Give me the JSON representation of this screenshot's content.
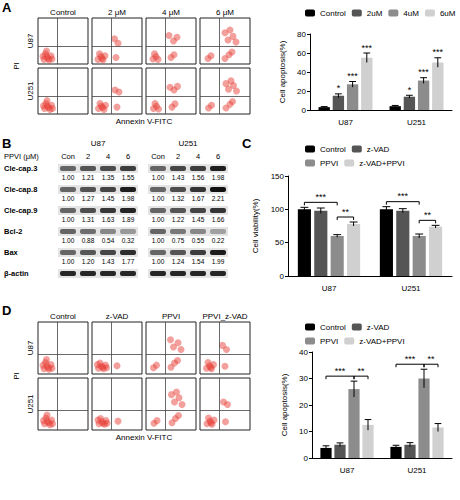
{
  "chart_data": [
    {
      "type": "scatter",
      "panel": "A",
      "x_label": "Annexin V-FITC",
      "y_label": "PI",
      "columns": [
        "Control",
        "2 μM",
        "4 μM",
        "6 μM"
      ],
      "rows": [
        "U87",
        "U251"
      ],
      "xlim": [
        0,
        100
      ],
      "ylim": [
        0,
        100
      ],
      "tick_labels": false,
      "gate": {
        "x": 38,
        "y": 38
      },
      "color": "#e8413a",
      "points": [
        [
          [
            [
              12,
              10
            ],
            [
              18,
              16
            ],
            [
              22,
              9
            ],
            [
              15,
              22
            ],
            [
              26,
              18
            ],
            [
              20,
              12
            ],
            [
              10,
              17
            ],
            [
              28,
              11
            ],
            [
              17,
              28
            ]
          ],
          [
            [
              12,
              10
            ],
            [
              18,
              16
            ],
            [
              22,
              9
            ],
            [
              15,
              22
            ],
            [
              26,
              18
            ],
            [
              20,
              12
            ],
            [
              48,
              14
            ],
            [
              52,
              45
            ],
            [
              45,
              55
            ]
          ],
          [
            [
              14,
              11
            ],
            [
              20,
              16
            ],
            [
              24,
              10
            ],
            [
              17,
              22
            ],
            [
              50,
              14
            ],
            [
              56,
              20
            ],
            [
              55,
              50
            ],
            [
              62,
              58
            ],
            [
              46,
              62
            ]
          ],
          [
            [
              16,
              12
            ],
            [
              22,
              18
            ],
            [
              50,
              12
            ],
            [
              58,
              20
            ],
            [
              64,
              26
            ],
            [
              56,
              52
            ],
            [
              66,
              60
            ],
            [
              72,
              48
            ],
            [
              50,
              68
            ],
            [
              60,
              74
            ]
          ]
        ],
        [
          [
            [
              13,
              12
            ],
            [
              19,
              17
            ],
            [
              24,
              10
            ],
            [
              16,
              23
            ],
            [
              27,
              19
            ],
            [
              21,
              14
            ],
            [
              11,
              18
            ],
            [
              29,
              12
            ],
            [
              18,
              29
            ]
          ],
          [
            [
              13,
              12
            ],
            [
              19,
              17
            ],
            [
              24,
              10
            ],
            [
              16,
              23
            ],
            [
              27,
              19
            ],
            [
              21,
              14
            ],
            [
              50,
              15
            ],
            [
              54,
              48
            ],
            [
              46,
              52
            ]
          ],
          [
            [
              15,
              12
            ],
            [
              21,
              17
            ],
            [
              25,
              11
            ],
            [
              18,
              23
            ],
            [
              52,
              15
            ],
            [
              58,
              22
            ],
            [
              56,
              52
            ],
            [
              63,
              60
            ],
            [
              48,
              58
            ]
          ],
          [
            [
              17,
              13
            ],
            [
              23,
              19
            ],
            [
              52,
              13
            ],
            [
              60,
              21
            ],
            [
              65,
              27
            ],
            [
              57,
              54
            ],
            [
              67,
              62
            ],
            [
              73,
              50
            ],
            [
              52,
              66
            ],
            [
              62,
              72
            ]
          ]
        ]
      ]
    },
    {
      "type": "bar",
      "y_label": "Cell apoptosis(%)",
      "categories": [
        "U87",
        "U251"
      ],
      "ylim": [
        0,
        80
      ],
      "yticks": [
        0,
        20,
        40,
        60,
        80
      ],
      "grid": false,
      "legend": "top",
      "series": [
        {
          "name": "Control",
          "color": "#000000",
          "values": [
            3,
            4
          ],
          "errors": [
            0.6,
            0.8
          ]
        },
        {
          "name": "2uM",
          "color": "#555555",
          "values": [
            15,
            14
          ],
          "errors": [
            2,
            1.5
          ],
          "significance": [
            "*",
            "*"
          ]
        },
        {
          "name": "4uM",
          "color": "#8c8c8c",
          "values": [
            27,
            31
          ],
          "errors": [
            3,
            3
          ],
          "significance": [
            "***",
            "***"
          ]
        },
        {
          "name": "6uM",
          "color": "#d0d0d0",
          "values": [
            55,
            50
          ],
          "errors": [
            5,
            5
          ],
          "significance": [
            "***",
            "***"
          ]
        }
      ]
    },
    {
      "type": "blot",
      "panel": "B",
      "title": "PPVI (μM)",
      "lanes": [
        "Con",
        "2",
        "4",
        "6"
      ],
      "rows": [
        "Cle-cap.3",
        "Cle-cap.8",
        "Cle-cap.9",
        "Bcl-2",
        "Bax",
        "β-actin"
      ],
      "groups": [
        {
          "name": "U87",
          "values": [
            [
              "1.00",
              "1.21",
              "1.35",
              "1.55"
            ],
            [
              "1.00",
              "1.27",
              "1.45",
              "1.98"
            ],
            [
              "1.00",
              "1.31",
              "1.63",
              "1.89"
            ],
            [
              "1.00",
              "0.88",
              "0.54",
              "0.32"
            ],
            [
              "1.00",
              "1.20",
              "1.43",
              "1.77"
            ],
            null
          ]
        },
        {
          "name": "U251",
          "values": [
            [
              "1.00",
              "1.43",
              "1.56",
              "1.98"
            ],
            [
              "1.00",
              "1.32",
              "1.67",
              "2.21"
            ],
            [
              "1.00",
              "1.22",
              "1.45",
              "1.66"
            ],
            [
              "1.00",
              "0.75",
              "0.55",
              "0.22"
            ],
            [
              "1.00",
              "1.24",
              "1.54",
              "1.99"
            ],
            null
          ]
        }
      ]
    },
    {
      "type": "bar",
      "panel": "C",
      "y_label": "Cell viability(%)",
      "categories": [
        "U87",
        "U251"
      ],
      "ylim": [
        0,
        150
      ],
      "yticks": [
        0,
        50,
        100,
        150
      ],
      "grid": false,
      "legend": "top",
      "series": [
        {
          "name": "Control",
          "color": "#000000",
          "values": [
            100,
            100
          ],
          "errors": [
            3,
            4
          ]
        },
        {
          "name": "z-VAD",
          "color": "#555555",
          "values": [
            98,
            98
          ],
          "errors": [
            4,
            3
          ]
        },
        {
          "name": "PPVI",
          "color": "#8c8c8c",
          "values": [
            60,
            60
          ],
          "errors": [
            2,
            3
          ]
        },
        {
          "name": "z-VAD+PPVI",
          "color": "#d0d0d0",
          "values": [
            78,
            74
          ],
          "errors": [
            3,
            2
          ]
        }
      ],
      "brackets": [
        {
          "category": "U87",
          "from": "Control",
          "to": "PPVI",
          "label": "***"
        },
        {
          "category": "U87",
          "from": "PPVI",
          "to": "z-VAD+PPVI",
          "label": "**"
        },
        {
          "category": "U251",
          "from": "Control",
          "to": "PPVI",
          "label": "***"
        },
        {
          "category": "U251",
          "from": "PPVI",
          "to": "z-VAD+PPVI",
          "label": "**"
        }
      ]
    },
    {
      "type": "scatter",
      "panel": "D",
      "x_label": "Annexin V-FITC",
      "y_label": "PI",
      "columns": [
        "Control",
        "z-VAD",
        "PPVI",
        "PPVI_z-VAD"
      ],
      "rows": [
        "U87",
        "U251"
      ],
      "xlim": [
        0,
        100
      ],
      "ylim": [
        0,
        100
      ],
      "tick_labels": false,
      "gate": {
        "x": 38,
        "y": 38
      },
      "color": "#e8413a",
      "points": [
        [
          [
            [
              12,
              10
            ],
            [
              18,
              16
            ],
            [
              22,
              9
            ],
            [
              15,
              22
            ],
            [
              26,
              18
            ],
            [
              20,
              12
            ],
            [
              10,
              17
            ],
            [
              28,
              11
            ],
            [
              17,
              28
            ]
          ],
          [
            [
              13,
              11
            ],
            [
              19,
              15
            ],
            [
              23,
              10
            ],
            [
              16,
              21
            ],
            [
              27,
              17
            ],
            [
              21,
              13
            ],
            [
              11,
              18
            ],
            [
              29,
              12
            ],
            [
              50,
              16
            ]
          ],
          [
            [
              15,
              12
            ],
            [
              21,
              17
            ],
            [
              50,
              13
            ],
            [
              57,
              21
            ],
            [
              63,
              26
            ],
            [
              55,
              52
            ],
            [
              64,
              60
            ],
            [
              70,
              47
            ],
            [
              49,
              66
            ]
          ],
          [
            [
              13,
              11
            ],
            [
              19,
              16
            ],
            [
              23,
              10
            ],
            [
              16,
              22
            ],
            [
              27,
              18
            ],
            [
              21,
              13
            ],
            [
              50,
              15
            ],
            [
              53,
              47
            ],
            [
              45,
              55
            ]
          ]
        ],
        [
          [
            [
              13,
              12
            ],
            [
              19,
              17
            ],
            [
              24,
              10
            ],
            [
              16,
              23
            ],
            [
              27,
              19
            ],
            [
              21,
              14
            ],
            [
              11,
              18
            ],
            [
              29,
              12
            ],
            [
              18,
              29
            ]
          ],
          [
            [
              14,
              12
            ],
            [
              20,
              16
            ],
            [
              25,
              11
            ],
            [
              17,
              22
            ],
            [
              28,
              18
            ],
            [
              22,
              13
            ],
            [
              12,
              19
            ],
            [
              30,
              13
            ],
            [
              52,
              17
            ]
          ],
          [
            [
              16,
              13
            ],
            [
              22,
              18
            ],
            [
              52,
              14
            ],
            [
              59,
              22
            ],
            [
              65,
              28
            ],
            [
              57,
              54
            ],
            [
              66,
              62
            ],
            [
              72,
              49
            ],
            [
              51,
              68
            ],
            [
              61,
              73
            ]
          ],
          [
            [
              14,
              12
            ],
            [
              20,
              17
            ],
            [
              24,
              11
            ],
            [
              17,
              23
            ],
            [
              28,
              19
            ],
            [
              22,
              14
            ],
            [
              51,
              16
            ],
            [
              55,
              49
            ],
            [
              47,
              54
            ]
          ]
        ]
      ]
    },
    {
      "type": "bar",
      "y_label": "Cell apoptosis(%)",
      "categories": [
        "U87",
        "U251"
      ],
      "ylim": [
        0,
        40
      ],
      "yticks": [
        0,
        10,
        20,
        30,
        40
      ],
      "grid": false,
      "legend": "top",
      "series": [
        {
          "name": "Control",
          "color": "#000000",
          "values": [
            3.8,
            4.2
          ],
          "errors": [
            0.8,
            0.6
          ]
        },
        {
          "name": "z-VAD",
          "color": "#555555",
          "values": [
            5,
            5
          ],
          "errors": [
            0.7,
            0.8
          ]
        },
        {
          "name": "PPVI",
          "color": "#8c8c8c",
          "values": [
            26,
            30
          ],
          "errors": [
            3,
            3.5
          ]
        },
        {
          "name": "z-VAD+PPVI",
          "color": "#d0d0d0",
          "values": [
            12.5,
            11.5
          ],
          "errors": [
            2,
            1.5
          ]
        }
      ],
      "brackets": [
        {
          "category": "U87",
          "from": "Control",
          "to": "PPVI",
          "label": "***"
        },
        {
          "category": "U87",
          "from": "PPVI",
          "to": "z-VAD+PPVI",
          "label": "**"
        },
        {
          "category": "U251",
          "from": "Control",
          "to": "PPVI",
          "label": "***"
        },
        {
          "category": "U251",
          "from": "PPVI",
          "to": "z-VAD+PPVI",
          "label": "**"
        }
      ]
    }
  ]
}
